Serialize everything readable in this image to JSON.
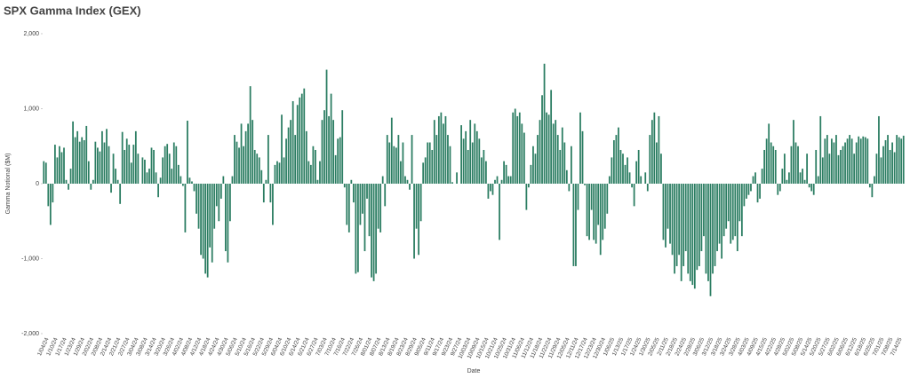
{
  "chart_data": {
    "type": "bar",
    "title": "SPX Gamma Index (GEX)",
    "x_label": "Date",
    "y_label": "Gamma Notional ($M)",
    "categories": [
      "1/04/24",
      null,
      null,
      null,
      "1/10/24",
      null,
      null,
      null,
      "1/17/24",
      null,
      null,
      null,
      "1/23/24",
      null,
      null,
      null,
      "1/29/24",
      null,
      null,
      null,
      "2/02/24",
      null,
      null,
      null,
      "2/08/24",
      null,
      null,
      null,
      "2/14/24",
      null,
      null,
      null,
      "2/21/24",
      null,
      null,
      null,
      "2/27/24",
      null,
      null,
      null,
      "3/04/24",
      null,
      null,
      null,
      "3/08/24",
      null,
      null,
      null,
      "3/14/24",
      null,
      null,
      null,
      "3/20/24",
      null,
      null,
      null,
      "3/26/24",
      null,
      null,
      null,
      "4/02/24",
      null,
      null,
      null,
      "4/08/24",
      null,
      null,
      null,
      "4/12/24",
      null,
      null,
      null,
      "4/18/24",
      null,
      null,
      null,
      "4/24/24",
      null,
      null,
      null,
      "4/30/24",
      null,
      null,
      null,
      "5/06/24",
      null,
      null,
      null,
      "5/10/24",
      null,
      null,
      null,
      "5/16/24",
      null,
      null,
      null,
      "5/22/24",
      null,
      null,
      null,
      "5/29/24",
      null,
      null,
      null,
      "6/04/24",
      null,
      null,
      null,
      "6/10/24",
      null,
      null,
      null,
      "6/14/24",
      null,
      null,
      null,
      "6/21/24",
      null,
      null,
      null,
      "6/27/24",
      null,
      null,
      null,
      "7/03/24",
      null,
      null,
      null,
      "7/10/24",
      null,
      null,
      null,
      "7/16/24",
      null,
      null,
      null,
      "7/22/24",
      null,
      null,
      null,
      "7/26/24",
      null,
      null,
      null,
      "8/01/24",
      null,
      null,
      null,
      "8/07/24",
      null,
      null,
      null,
      "8/13/24",
      null,
      null,
      null,
      "8/19/24",
      null,
      null,
      null,
      "8/23/24",
      null,
      null,
      null,
      "8/29/24",
      null,
      null,
      null,
      "9/05/24",
      null,
      null,
      null,
      "9/11/24",
      null,
      null,
      null,
      "9/17/24",
      null,
      null,
      null,
      "9/23/24",
      null,
      null,
      null,
      "9/27/24",
      null,
      null,
      null,
      "10/03/24",
      null,
      null,
      null,
      "10/09/24",
      null,
      null,
      null,
      "10/15/24",
      null,
      null,
      null,
      "10/21/24",
      null,
      null,
      null,
      "10/25/24",
      null,
      null,
      null,
      "10/31/24",
      null,
      null,
      null,
      "11/06/24",
      null,
      null,
      null,
      "11/12/24",
      null,
      null,
      null,
      "11/18/24",
      null,
      null,
      null,
      "11/22/24",
      null,
      null,
      null,
      "11/29/24",
      null,
      null,
      null,
      "12/05/24",
      null,
      null,
      null,
      "12/11/24",
      null,
      null,
      null,
      "12/17/24",
      null,
      null,
      null,
      "12/23/24",
      null,
      null,
      null,
      "12/30/24",
      null,
      null,
      null,
      "1/06/25",
      null,
      null,
      null,
      "1/13/25",
      null,
      null,
      null,
      "1/17/25",
      null,
      null,
      null,
      "1/24/25",
      null,
      null,
      null,
      "1/30/25",
      null,
      null,
      null,
      "2/05/25",
      null,
      null,
      null,
      "2/11/25",
      null,
      null,
      null,
      "2/18/25",
      null,
      null,
      null,
      "2/24/25",
      null,
      null,
      null,
      "2/28/25",
      null,
      null,
      null,
      "3/06/25",
      null,
      null,
      null,
      "3/12/25",
      null,
      null,
      null,
      "3/18/25",
      null,
      null,
      null,
      "3/24/25",
      null,
      null,
      null,
      "3/28/25",
      null,
      null,
      null,
      "4/03/25",
      null,
      null,
      null,
      "4/09/25",
      null,
      null,
      null,
      "4/15/25",
      null,
      null,
      null,
      "4/22/25",
      null,
      null,
      null,
      "4/28/25",
      null,
      null,
      null,
      "5/02/25",
      null,
      null,
      null,
      "5/08/25",
      null,
      null,
      null,
      "5/14/25",
      null,
      null,
      null,
      "5/20/25",
      null,
      null,
      null,
      "5/27/25",
      null,
      null,
      null,
      "6/02/25",
      null,
      null,
      null,
      "6/06/25",
      null,
      null,
      null,
      "6/12/25",
      null,
      null,
      null,
      "6/18/25",
      null,
      null,
      null,
      "6/25/25",
      null,
      null,
      null,
      "7/01/25",
      null,
      null,
      null,
      "7/08/25",
      null,
      null,
      null,
      "7/14/25",
      null,
      null,
      null
    ],
    "values": [
      300,
      280,
      -300,
      -550,
      -250,
      520,
      350,
      500,
      420,
      480,
      50,
      -80,
      200,
      830,
      620,
      700,
      560,
      620,
      580,
      770,
      300,
      -80,
      50,
      560,
      480,
      430,
      700,
      550,
      730,
      500,
      -120,
      400,
      200,
      50,
      -270,
      690,
      450,
      600,
      520,
      280,
      520,
      700,
      400,
      0,
      350,
      320,
      150,
      200,
      480,
      450,
      150,
      -180,
      80,
      350,
      500,
      530,
      400,
      200,
      550,
      500,
      250,
      100,
      -30,
      -650,
      840,
      80,
      30,
      -100,
      -400,
      -600,
      -950,
      -1000,
      -1200,
      -1250,
      -850,
      -1050,
      -600,
      -300,
      -500,
      -200,
      100,
      -900,
      -1050,
      -500,
      100,
      650,
      560,
      480,
      800,
      500,
      700,
      800,
      1300,
      850,
      450,
      400,
      350,
      180,
      -250,
      50,
      650,
      -250,
      -550,
      250,
      300,
      280,
      920,
      350,
      600,
      750,
      850,
      1100,
      650,
      1050,
      1150,
      1200,
      1270,
      700,
      300,
      250,
      500,
      450,
      50,
      300,
      850,
      980,
      1520,
      900,
      1200,
      850,
      380,
      600,
      620,
      980,
      -50,
      -550,
      -650,
      50,
      -250,
      -1200,
      -1180,
      -550,
      -400,
      -900,
      -200,
      -700,
      -1250,
      -1300,
      -1200,
      -600,
      -650,
      100,
      -300,
      650,
      550,
      880,
      500,
      480,
      650,
      300,
      550,
      100,
      50,
      -80,
      650,
      -1000,
      -600,
      -950,
      -500,
      280,
      350,
      550,
      550,
      450,
      850,
      650,
      900,
      950,
      800,
      900,
      650,
      500,
      20,
      0,
      150,
      0,
      780,
      600,
      700,
      450,
      850,
      550,
      800,
      700,
      600,
      350,
      450,
      300,
      -200,
      -100,
      -150,
      50,
      100,
      -750,
      50,
      300,
      250,
      100,
      100,
      950,
      1000,
      900,
      950,
      800,
      680,
      -350,
      -50,
      250,
      500,
      400,
      650,
      850,
      1180,
      1600,
      950,
      920,
      1250,
      800,
      850,
      650,
      450,
      750,
      550,
      180,
      -100,
      500,
      -1100,
      -1100,
      -350,
      950,
      700,
      -20,
      -700,
      -750,
      -350,
      -750,
      -800,
      -550,
      -950,
      -750,
      -600,
      -400,
      100,
      350,
      580,
      650,
      750,
      450,
      400,
      250,
      350,
      150,
      -50,
      -300,
      300,
      450,
      100,
      0,
      150,
      -100,
      650,
      850,
      950,
      550,
      900,
      400,
      -750,
      -850,
      -600,
      -800,
      -950,
      -1200,
      -1100,
      -950,
      -1300,
      -1100,
      -900,
      -1200,
      -1300,
      -1350,
      -1400,
      -1150,
      -1100,
      -900,
      -700,
      -1200,
      -1300,
      -1500,
      -1200,
      -1100,
      -900,
      -800,
      -1000,
      -700,
      -600,
      -500,
      -800,
      -750,
      -700,
      -900,
      -500,
      -700,
      -300,
      -200,
      -150,
      -100,
      100,
      150,
      -250,
      -200,
      200,
      450,
      600,
      800,
      550,
      500,
      450,
      -150,
      -100,
      200,
      400,
      50,
      150,
      500,
      850,
      550,
      500,
      150,
      200,
      50,
      400,
      -50,
      -100,
      -150,
      450,
      100,
      900,
      350,
      600,
      650,
      400,
      600,
      550,
      650,
      380,
      450,
      500,
      550,
      600,
      650,
      600,
      400,
      550,
      630,
      600,
      630,
      620,
      600,
      -50,
      -180,
      100,
      400,
      900,
      350,
      500,
      580,
      650,
      450,
      550,
      420,
      650,
      620,
      600,
      640
    ],
    "color": "#2b7d62",
    "ylim": [
      -2000,
      2000
    ],
    "yticks": [
      {
        "value": 2000,
        "label": "2,000"
      },
      {
        "value": 1000,
        "label": "1,000"
      },
      0,
      {
        "value": -1000,
        "label": "-1,000"
      },
      {
        "value": -2000,
        "label": "-2,000"
      }
    ],
    "grid": false
  }
}
